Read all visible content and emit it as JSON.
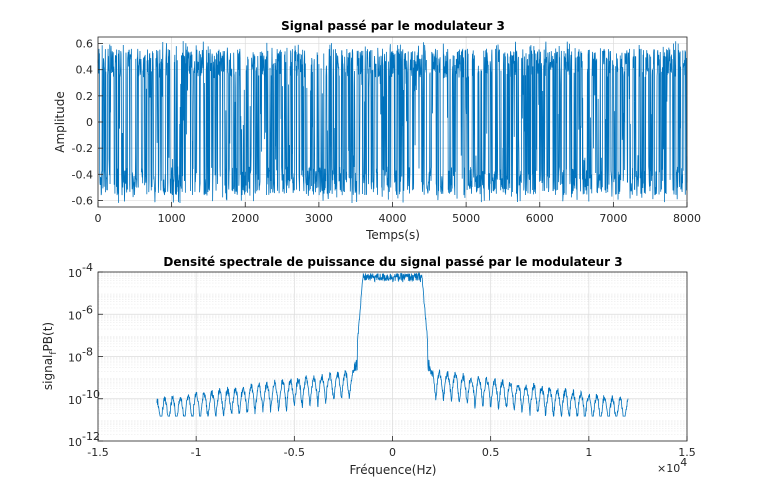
{
  "colors": {
    "line": "#0072BD",
    "grid": "#dcdcdc",
    "minorGrid": "#ececec",
    "axis": "#262626"
  },
  "chart_data": [
    {
      "type": "line",
      "title": "Signal passé par le modulateur 3",
      "xlabel": "Temps(s)",
      "ylabel": "Amplitude",
      "xlim": [
        0,
        8000
      ],
      "ylim": [
        -0.65,
        0.65
      ],
      "xticks": [
        0,
        1000,
        2000,
        3000,
        4000,
        5000,
        6000,
        7000,
        8000
      ],
      "xtick_labels": [
        "0",
        "1000",
        "2000",
        "3000",
        "4000",
        "5000",
        "6000",
        "7000",
        "8000"
      ],
      "yticks": [
        -0.6,
        -0.4,
        -0.2,
        0,
        0.2,
        0.4,
        0.6
      ],
      "ytick_labels": [
        "-0.6",
        "-0.4",
        "-0.2",
        "0",
        "0.2",
        "0.4",
        "0.6"
      ],
      "grid": true,
      "series": [
        {
          "description_of_shape": "dense noise-like modulated signal filling approximately -0.62 to 0.62 over 0–8000 s, with most samples concentrated near ±0.45",
          "x_range": [
            0,
            8000
          ],
          "amplitude_envelope": [
            -0.62,
            0.62
          ],
          "typical_level": 0.45
        }
      ]
    },
    {
      "type": "line",
      "title": "Densité spectrale de puissance du signal passé par le modulateur 3",
      "xlabel": "Fréquence(Hz)",
      "ylabel_base": "signal",
      "ylabel_sub": "f",
      "ylabel_rest": "PB(t)",
      "yscale": "log",
      "xlim": [
        -15000,
        15000
      ],
      "ylim": [
        1e-12,
        0.0001
      ],
      "xticks": [
        -15000,
        -10000,
        -5000,
        0,
        5000,
        10000,
        15000
      ],
      "xtick_labels": [
        "-1.5",
        "-1",
        "-0.5",
        "0",
        "0.5",
        "1",
        "1.5"
      ],
      "x_multiplier_base": "×10",
      "x_multiplier_exp": "4",
      "yticks": [
        1e-12,
        1e-10,
        1e-08,
        1e-06,
        0.0001
      ],
      "ytick_labels": [
        {
          "base": "10",
          "exp": "-12"
        },
        {
          "base": "10",
          "exp": "-10"
        },
        {
          "base": "10",
          "exp": "-8"
        },
        {
          "base": "10",
          "exp": "-6"
        },
        {
          "base": "10",
          "exp": "-4"
        }
      ],
      "grid": true,
      "minor_grid": true,
      "series": [
        {
          "x_range": [
            -12000,
            12000
          ],
          "passband_hz": [
            -1800,
            1800
          ],
          "passband_level": 6e-05,
          "sidelobe_peak_near_band": 2e-09,
          "sidelobe_peak_at_edges": 8e-11,
          "sidelobe_floor": 1.5e-11,
          "sidelobe_period_hz": 400
        }
      ]
    }
  ]
}
